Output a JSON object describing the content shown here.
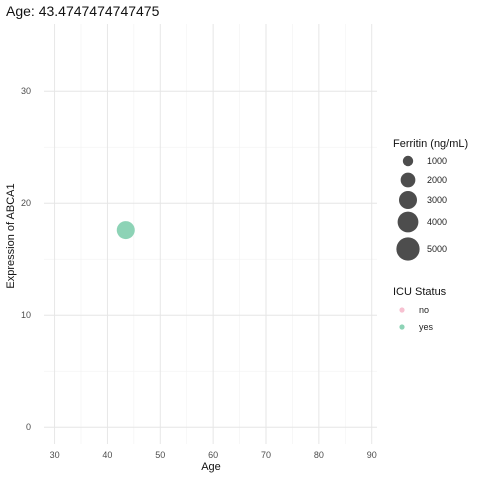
{
  "chart_data": {
    "type": "scatter",
    "title": "Age: 43.4747474747475",
    "xlabel": "Age",
    "ylabel": "Expression of ABCA1",
    "xlim": [
      28,
      91
    ],
    "ylim": [
      -1.5,
      36
    ],
    "xticks": [
      30,
      40,
      50,
      60,
      70,
      80,
      90
    ],
    "yticks": [
      0,
      10,
      20,
      30
    ],
    "grid": true,
    "points": [
      {
        "x": 43.47,
        "y": 17.6,
        "ferritin": 3000,
        "icu": "yes"
      }
    ],
    "legend_size": {
      "title": "Ferritin (ng/mL)",
      "entries": [
        {
          "label": "1000",
          "value": 1000
        },
        {
          "label": "2000",
          "value": 2000
        },
        {
          "label": "3000",
          "value": 3000
        },
        {
          "label": "4000",
          "value": 4000
        },
        {
          "label": "5000",
          "value": 5000
        }
      ]
    },
    "legend_color": {
      "title": "ICU Status",
      "entries": [
        {
          "label": "no",
          "color": "#f7c1d1"
        },
        {
          "label": "yes",
          "color": "#8dd3b6"
        }
      ]
    },
    "colors": {
      "yes": "#8dd3b6",
      "no": "#f7c1d1",
      "size_key": "#4d4d4d"
    }
  }
}
